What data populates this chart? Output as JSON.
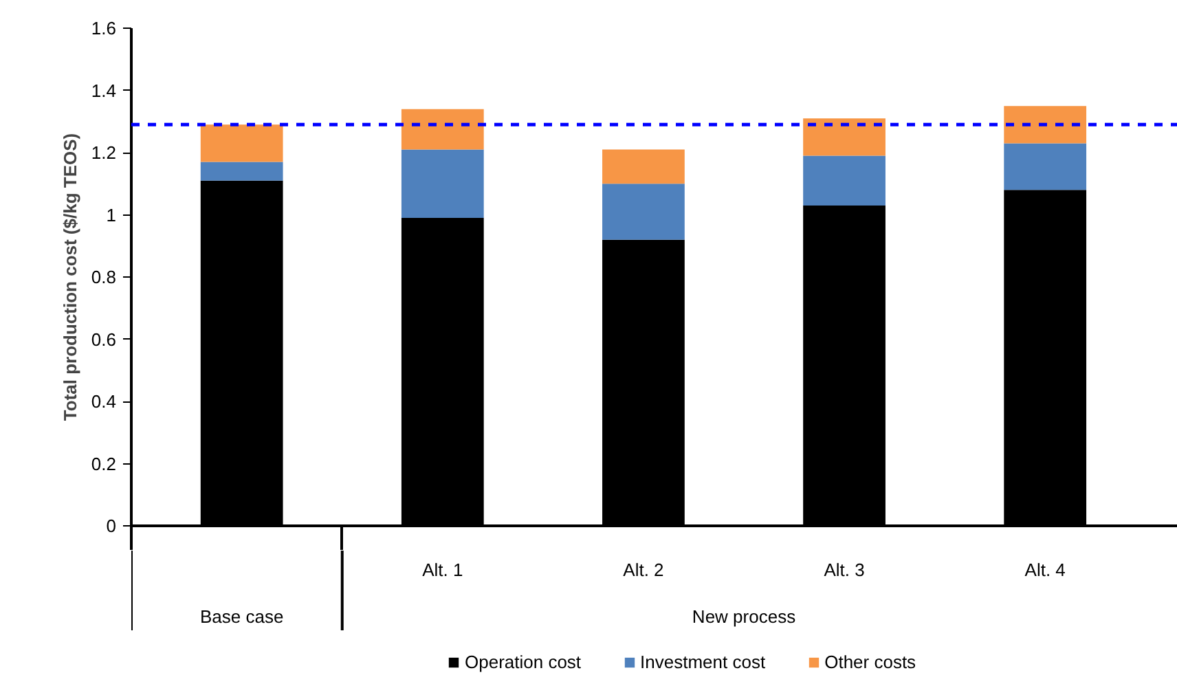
{
  "chart_data": {
    "type": "bar",
    "stacked": true,
    "ylabel": "Total production cost ($/kg TEOS)",
    "categories": [
      null,
      "Alt. 1",
      "Alt. 2",
      "Alt. 3",
      "Alt. 4"
    ],
    "series": [
      {
        "name": "Operation cost",
        "color": "#000000",
        "values": [
          1.11,
          0.99,
          0.92,
          1.03,
          1.08
        ]
      },
      {
        "name": "Investment cost",
        "color": "#4f81bd",
        "values": [
          0.06,
          0.22,
          0.18,
          0.16,
          0.15
        ]
      },
      {
        "name": "Other costs",
        "color": "#f79646",
        "values": [
          0.12,
          0.13,
          0.11,
          0.12,
          0.12
        ]
      }
    ],
    "ylim": [
      0,
      1.6
    ],
    "yticks": [
      0,
      0.2,
      0.4,
      0.6,
      0.8,
      1,
      1.2,
      1.4,
      1.6
    ],
    "ref_lines": [
      {
        "axis": "y",
        "value": 1.29,
        "label": null,
        "color": "#0000ff",
        "line_style": "dashed"
      }
    ],
    "annotations": [
      "Base case",
      "New process"
    ],
    "grid": false,
    "legend": "bottom"
  }
}
